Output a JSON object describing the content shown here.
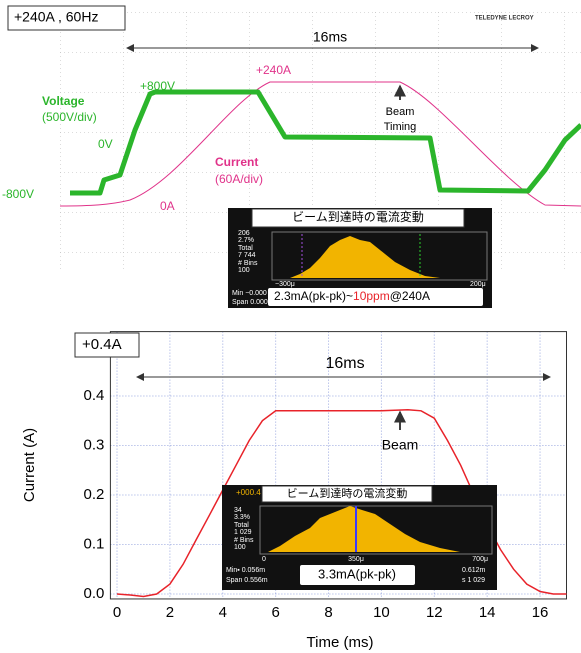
{
  "scope": {
    "title": "+240A , 60Hz",
    "span_label": "16ms",
    "logo": "TELEDYNE LECROY",
    "voltage_peak": "+800V",
    "current_peak": "+240A",
    "voltage_label": "Voltage",
    "voltage_scale": "(500V/div)",
    "zero_voltage": "0V",
    "min_voltage": "-800V",
    "beam_label": "Beam",
    "beam_label_2": "Timing",
    "current_label": "Current",
    "current_scale": "(60A/div)",
    "zero_current": "0A",
    "inset": {
      "title": "ビーム到達時の電流変動",
      "stats": [
        "206",
        "2.7%",
        "Total",
        "7 744",
        "# Bins",
        "100"
      ],
      "axis": [
        "−300μ",
        "200μ"
      ],
      "footer": [
        "Min −0.000",
        "Span 0.000"
      ],
      "result": "2.3mA(pk-pk)~",
      "result_ppm": "10ppm",
      "result_suffix": "@240A"
    }
  },
  "chart_data": {
    "type": "line",
    "x_label": "Time (ms)",
    "y_label": "Current (A)",
    "color": "#e8232a",
    "x": [
      0,
      0.5,
      1,
      1.5,
      2,
      2.5,
      3,
      3.5,
      4,
      4.5,
      5,
      5.5,
      6,
      7,
      8,
      9,
      10,
      11,
      11.5,
      12,
      12.5,
      13,
      13.5,
      14,
      14.5,
      15,
      15.5,
      16,
      16.5,
      17
    ],
    "values": [
      0,
      -0.002,
      -0.005,
      0,
      0.02,
      0.06,
      0.11,
      0.16,
      0.21,
      0.26,
      0.31,
      0.35,
      0.37,
      0.37,
      0.37,
      0.37,
      0.37,
      0.372,
      0.37,
      0.355,
      0.31,
      0.26,
      0.2,
      0.14,
      0.09,
      0.05,
      0.02,
      0.005,
      0,
      0
    ],
    "xlim": [
      -0.25,
      17
    ],
    "ylim": [
      -0.01,
      0.53
    ],
    "xticks": [
      0,
      2,
      4,
      6,
      8,
      10,
      12,
      14,
      16
    ],
    "yticks": [
      {
        "value": 0,
        "label": "0.0"
      },
      0.1,
      0.2,
      0.3,
      0.4
    ],
    "grid": true,
    "annotations": {
      "range": "+0.4A",
      "span": "16ms",
      "beam": "Beam"
    },
    "inset": {
      "title": "ビーム到達時の電流変動",
      "header": "+000.4",
      "stats": [
        "34",
        "3.3%",
        "Total",
        "1 029",
        "# Bins",
        "100"
      ],
      "axis": [
        "0",
        "350μ",
        "700μ"
      ],
      "footer": [
        "Min▪ 0.056m",
        "Span 0.556m",
        "0.612m",
        "s 1 029"
      ],
      "result": "3.3mA(pk-pk)"
    }
  }
}
